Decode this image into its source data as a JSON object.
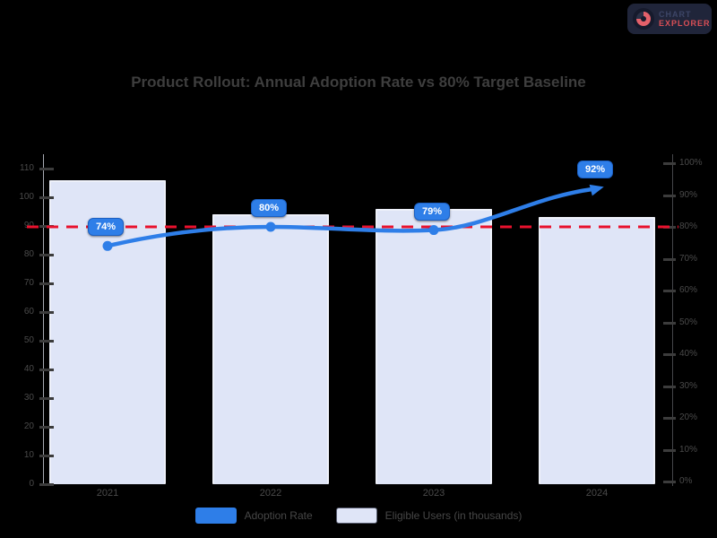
{
  "page": {
    "background": "#000000",
    "logo": {
      "line1": "CHART",
      "line2": "EXPLORER"
    }
  },
  "chart_data": {
    "type": "bar+line",
    "title": "Product Rollout: Annual Adoption Rate vs 80% Target Baseline",
    "categories": [
      "2021",
      "2022",
      "2023",
      "2024"
    ],
    "bar_series": {
      "name": "Eligible Users (in thousands)",
      "values": [
        106,
        94,
        96,
        93
      ],
      "color": "#dfe5f7"
    },
    "line_series": {
      "name": "Adoption Rate",
      "values": [
        74,
        80,
        79,
        92
      ],
      "labels": [
        "74%",
        "80%",
        "79%",
        "92%"
      ],
      "color": "#2e7ee8"
    },
    "target_line": {
      "value": 80,
      "style": "dashed",
      "color": "#e8112d"
    },
    "left_axis": {
      "min": 0,
      "max": 110,
      "step": 10,
      "tick_labels": [
        "110",
        "100",
        "90",
        "80",
        "70",
        "60",
        "50",
        "40",
        "30",
        "20",
        "10",
        "0"
      ]
    },
    "right_axis": {
      "min": 0,
      "max": 100,
      "step": 10,
      "tick_labels": [
        "100%",
        "90%",
        "80%",
        "70%",
        "60%",
        "50%",
        "40%",
        "30%",
        "20%",
        "10%",
        "0%"
      ]
    },
    "legend": [
      {
        "label": "Adoption Rate",
        "color": "#2e7ee8",
        "kind": "line"
      },
      {
        "label": "Eligible Users (in thousands)",
        "color": "#dfe5f7",
        "kind": "bar"
      }
    ],
    "grid": false,
    "legend_position": "bottom"
  }
}
